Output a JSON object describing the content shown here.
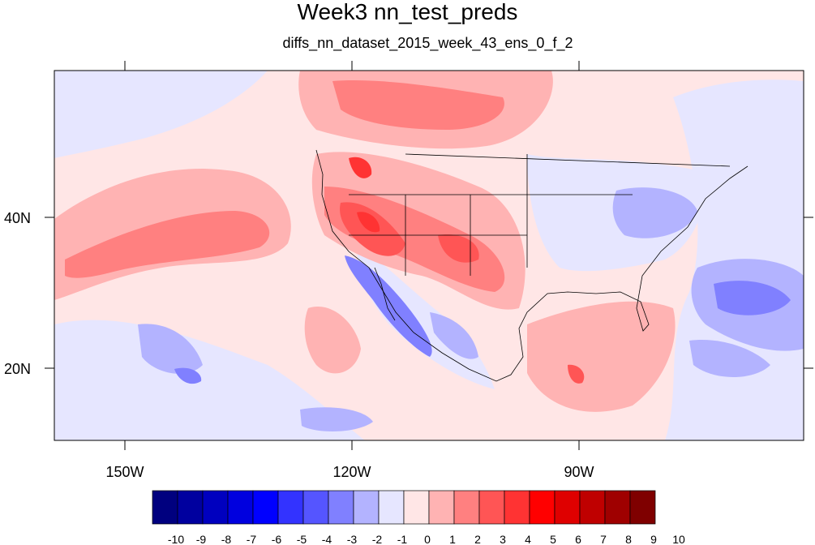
{
  "map": {
    "title": "Week3 nn_test_preds",
    "subtitle": "diffs_nn_dataset_2015_week_43_ens_0_f_2",
    "x_ticks": [
      "150W",
      "120W",
      "90W"
    ],
    "y_ticks": [
      "40N",
      "20N"
    ]
  },
  "colorbar": {
    "labels": [
      "-10",
      "-9",
      "-8",
      "-7",
      "-6",
      "-5",
      "-4",
      "-3",
      "-2",
      "-1",
      "0",
      "1",
      "2",
      "3",
      "4",
      "5",
      "6",
      "7",
      "8",
      "9",
      "10"
    ],
    "colors": [
      "#00007f",
      "#00009f",
      "#0000bf",
      "#0000df",
      "#0000ff",
      "#3333ff",
      "#5555ff",
      "#8080ff",
      "#b3b3ff",
      "#e6e6ff",
      "#ffe6e6",
      "#ffb3b3",
      "#ff8080",
      "#ff5555",
      "#ff3333",
      "#ff0000",
      "#df0000",
      "#bf0000",
      "#9f0000",
      "#7f0000"
    ]
  }
}
